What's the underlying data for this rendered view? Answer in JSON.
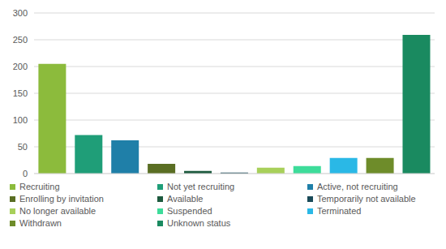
{
  "chart_data": {
    "type": "bar",
    "categories": [
      "Recruiting",
      "Not yet recruiting",
      "Active, not recruiting",
      "Enrolling by invitation",
      "Available",
      "Temporarily not available",
      "No longer available",
      "Suspended",
      "Terminated",
      "Withdrawn",
      "Unknown status"
    ],
    "values": [
      205,
      72,
      62,
      18,
      5,
      2,
      11,
      14,
      29,
      29,
      259
    ],
    "colors": [
      "#8cbb3c",
      "#1f9e78",
      "#1f7fa8",
      "#5a6e23",
      "#1d5a3e",
      "#1a4a58",
      "#a8d05a",
      "#3ddc9a",
      "#2ab8e6",
      "#6e8c2a",
      "#1a8a60"
    ],
    "ylim": [
      0,
      300
    ],
    "yticks": [
      0,
      50,
      100,
      150,
      200,
      250,
      300
    ],
    "grid": true,
    "legend": "bottom",
    "tick_labels": "y"
  }
}
